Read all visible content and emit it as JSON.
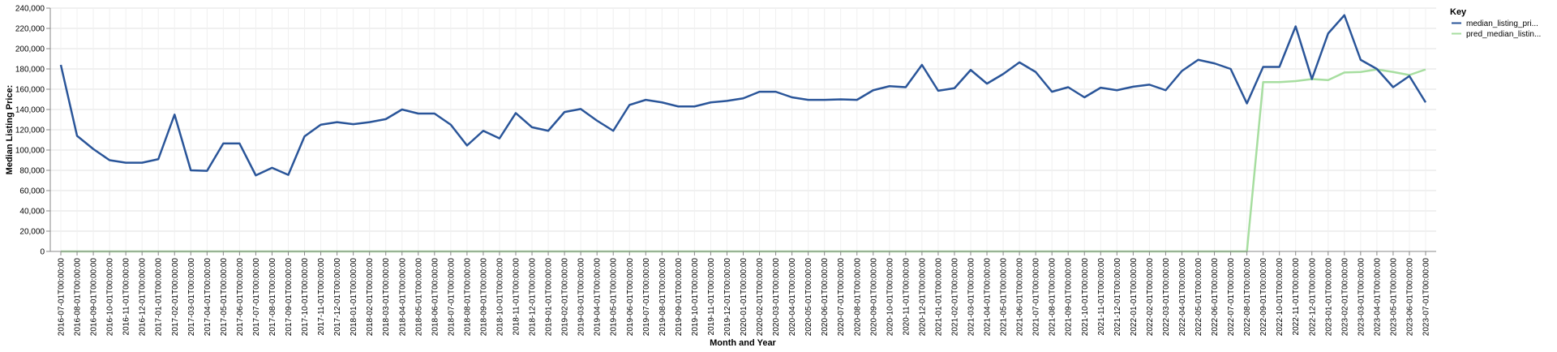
{
  "chart_data": {
    "type": "line",
    "xlabel": "Month and Year",
    "ylabel": "Median Listing Price:",
    "ylim": [
      0,
      240000
    ],
    "yticks": [
      0,
      20000,
      40000,
      60000,
      80000,
      100000,
      120000,
      140000,
      160000,
      180000,
      200000,
      220000,
      240000
    ],
    "ytick_labels": [
      "0",
      "20,000",
      "40,000",
      "60,000",
      "80,000",
      "100,000",
      "120,000",
      "140,000",
      "160,000",
      "180,000",
      "200,000",
      "220,000",
      "240,000"
    ],
    "grid": true,
    "legend": {
      "title": "Key",
      "position": "right",
      "entries": [
        "median_listing_pri...",
        "pred_median_listin..."
      ]
    },
    "x": [
      "2016-07-01T00:00:00",
      "2016-08-01T00:00:00",
      "2016-09-01T00:00:00",
      "2016-10-01T00:00:00",
      "2016-11-01T00:00:00",
      "2016-12-01T00:00:00",
      "2017-01-01T00:00:00",
      "2017-02-01T00:00:00",
      "2017-03-01T00:00:00",
      "2017-04-01T00:00:00",
      "2017-05-01T00:00:00",
      "2017-06-01T00:00:00",
      "2017-07-01T00:00:00",
      "2017-08-01T00:00:00",
      "2017-09-01T00:00:00",
      "2017-10-01T00:00:00",
      "2017-11-01T00:00:00",
      "2017-12-01T00:00:00",
      "2018-01-01T00:00:00",
      "2018-02-01T00:00:00",
      "2018-03-01T00:00:00",
      "2018-04-01T00:00:00",
      "2018-05-01T00:00:00",
      "2018-06-01T00:00:00",
      "2018-07-01T00:00:00",
      "2018-08-01T00:00:00",
      "2018-09-01T00:00:00",
      "2018-10-01T00:00:00",
      "2018-11-01T00:00:00",
      "2018-12-01T00:00:00",
      "2019-01-01T00:00:00",
      "2019-02-01T00:00:00",
      "2019-03-01T00:00:00",
      "2019-04-01T00:00:00",
      "2019-05-01T00:00:00",
      "2019-06-01T00:00:00",
      "2019-07-01T00:00:00",
      "2019-08-01T00:00:00",
      "2019-09-01T00:00:00",
      "2019-10-01T00:00:00",
      "2019-11-01T00:00:00",
      "2019-12-01T00:00:00",
      "2020-01-01T00:00:00",
      "2020-02-01T00:00:00",
      "2020-03-01T00:00:00",
      "2020-04-01T00:00:00",
      "2020-05-01T00:00:00",
      "2020-06-01T00:00:00",
      "2020-07-01T00:00:00",
      "2020-08-01T00:00:00",
      "2020-09-01T00:00:00",
      "2020-10-01T00:00:00",
      "2020-11-01T00:00:00",
      "2020-12-01T00:00:00",
      "2021-01-01T00:00:00",
      "2021-02-01T00:00:00",
      "2021-03-01T00:00:00",
      "2021-04-01T00:00:00",
      "2021-05-01T00:00:00",
      "2021-06-01T00:00:00",
      "2021-07-01T00:00:00",
      "2021-08-01T00:00:00",
      "2021-09-01T00:00:00",
      "2021-10-01T00:00:00",
      "2021-11-01T00:00:00",
      "2021-12-01T00:00:00",
      "2022-01-01T00:00:00",
      "2022-02-01T00:00:00",
      "2022-03-01T00:00:00",
      "2022-04-01T00:00:00",
      "2022-05-01T00:00:00",
      "2022-06-01T00:00:00",
      "2022-07-01T00:00:00",
      "2022-08-01T00:00:00",
      "2022-09-01T00:00:00",
      "2022-10-01T00:00:00",
      "2022-11-01T00:00:00",
      "2022-12-01T00:00:00",
      "2023-01-01T00:00:00",
      "2023-02-01T00:00:00",
      "2023-03-01T00:00:00",
      "2023-04-01T00:00:00",
      "2023-05-01T00:00:00",
      "2023-06-01T00:00:00",
      "2023-07-01T00:00:00"
    ],
    "series": [
      {
        "name": "median_listing_pri...",
        "color": "#2a5599",
        "values": [
          184000,
          114000,
          101000,
          90000,
          87500,
          87500,
          91000,
          135000,
          80000,
          79500,
          106500,
          106500,
          75000,
          82500,
          75500,
          113500,
          125000,
          127500,
          125500,
          127500,
          130500,
          140000,
          136000,
          136000,
          125000,
          104500,
          119000,
          111500,
          136500,
          122500,
          119000,
          137500,
          140500,
          129000,
          119000,
          144500,
          149500,
          147000,
          143000,
          143000,
          147000,
          148500,
          151000,
          157500,
          157500,
          152000,
          149500,
          149500,
          150000,
          149500,
          159000,
          163000,
          162000,
          184000,
          158500,
          161000,
          179000,
          165500,
          175000,
          186500,
          177000,
          157500,
          162000,
          152000,
          161500,
          159000,
          162500,
          164500,
          159000,
          178000,
          189000,
          185500,
          180000,
          146000,
          182000,
          182000,
          222000,
          170000,
          215000,
          233000,
          189000,
          180000,
          162000,
          173000,
          147000
        ]
      },
      {
        "name": "pred_median_listin...",
        "color": "#a7dea0",
        "values": [
          0,
          0,
          0,
          0,
          0,
          0,
          0,
          0,
          0,
          0,
          0,
          0,
          0,
          0,
          0,
          0,
          0,
          0,
          0,
          0,
          0,
          0,
          0,
          0,
          0,
          0,
          0,
          0,
          0,
          0,
          0,
          0,
          0,
          0,
          0,
          0,
          0,
          0,
          0,
          0,
          0,
          0,
          0,
          0,
          0,
          0,
          0,
          0,
          0,
          0,
          0,
          0,
          0,
          0,
          0,
          0,
          0,
          0,
          0,
          0,
          0,
          0,
          0,
          0,
          0,
          0,
          0,
          0,
          0,
          0,
          0,
          0,
          0,
          0,
          167000,
          167000,
          168000,
          170000,
          169000,
          176500,
          177000,
          179500,
          177000,
          174000,
          179500
        ]
      }
    ]
  }
}
